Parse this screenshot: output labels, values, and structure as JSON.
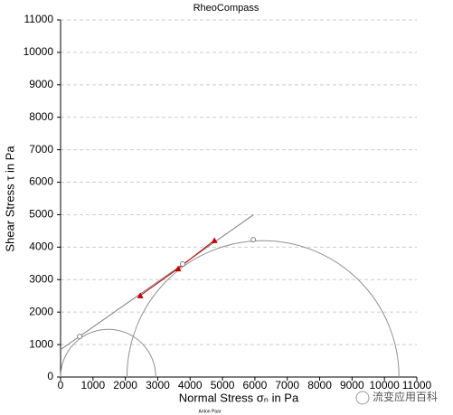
{
  "chart_data": {
    "type": "mohr",
    "title": "RheoCompass",
    "xlabel": "Normal Stress σₙ in Pa",
    "ylabel": "Shear Stress τ in Pa",
    "footer": "Anton Paar",
    "watermark": "流变应用百科",
    "xlim": [
      0,
      11000
    ],
    "ylim": [
      0,
      11000
    ],
    "xticks": [
      0,
      1000,
      2000,
      3000,
      4000,
      5000,
      6000,
      7000,
      8000,
      9000,
      10000,
      11000
    ],
    "yticks": [
      0,
      1000,
      2000,
      3000,
      4000,
      5000,
      6000,
      7000,
      8000,
      9000,
      10000,
      11000
    ],
    "grid": "y",
    "circles": [
      {
        "cx": 1470,
        "r": 1470,
        "color": "#909090"
      },
      {
        "cx": 6250,
        "r": 4200,
        "color": "#909090"
      }
    ],
    "series": [
      {
        "marker": "none",
        "color": "#808080",
        "x": [
          0,
          5950
        ],
        "values": [
          844,
          4990
        ]
      },
      {
        "marker": "triangle",
        "color": "#c00000",
        "x": [
          2460,
          3630,
          4750
        ],
        "values": [
          2510,
          3340,
          4210
        ]
      },
      {
        "marker": "open-circle",
        "color": "#808080",
        "x": [
          590,
          3770,
          5950
        ],
        "values": [
          1250,
          3480,
          4230
        ]
      }
    ]
  }
}
